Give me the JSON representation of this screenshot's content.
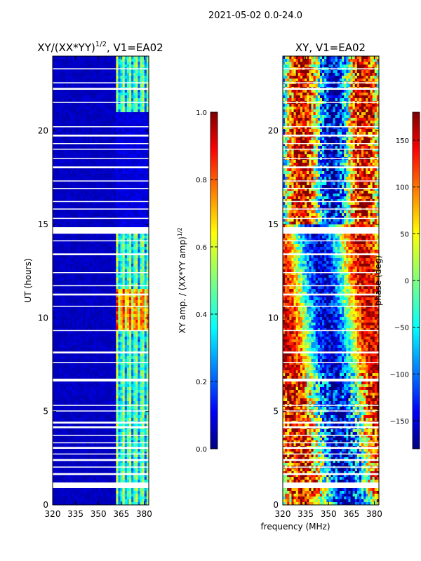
{
  "figure_title": "2021-05-02 0.0-24.0",
  "xlabel": "frequency (MHz)",
  "colors": {
    "cmap_low": "#00007f",
    "cmap_high": "#7f0000",
    "gap": "#ffffff",
    "axis": "#000000"
  },
  "chart_data": [
    {
      "type": "heatmap",
      "title_main": "XY/(XX*YY)",
      "title_exp": "1/2",
      "title_suffix": ", V1=EA02",
      "ylabel": "UT (hours)",
      "xlim": [
        320,
        383
      ],
      "ylim": [
        0,
        24
      ],
      "xticks": [
        320,
        335,
        350,
        365,
        380
      ],
      "yticks": [
        0,
        5,
        10,
        15,
        20
      ],
      "colorbar": {
        "label_main": "XY amp. / (XX*YY amp)",
        "label_exp": "1/2",
        "range": [
          0.0,
          1.0
        ],
        "ticks": [
          0.0,
          0.2,
          0.4,
          0.6,
          0.8,
          1.0
        ],
        "tick_labels": [
          "0.0",
          "0.2",
          "0.4",
          "0.6",
          "0.8",
          "1.0"
        ]
      },
      "pattern": "low-amplitude background; elevated amplitude 361-382 MHz, strongest ~9.5-11.5 UT"
    },
    {
      "type": "heatmap",
      "title_main": "XY, V1=EA02",
      "ylabel": "",
      "xlim": [
        320,
        383
      ],
      "ylim": [
        0,
        24
      ],
      "xticks": [
        320,
        335,
        350,
        365,
        380
      ],
      "yticks": [
        0,
        5,
        10,
        15,
        20
      ],
      "colorbar": {
        "label_main": "phase (deg)",
        "range": [
          -180,
          180
        ],
        "ticks": [
          -150,
          -100,
          -50,
          0,
          50,
          100,
          150
        ],
        "tick_labels": [
          "−150",
          "−100",
          "−50",
          "0",
          "50",
          "100",
          "150"
        ]
      },
      "pattern": "phase stripes across frequency, noisy in 15-24 UT and 0-7 UT"
    }
  ],
  "gap_bands_ut": [
    [
      0.9,
      1.2
    ],
    [
      1.6,
      1.7
    ],
    [
      2.0,
      2.05
    ],
    [
      2.35,
      2.45
    ],
    [
      2.7,
      2.75
    ],
    [
      3.0,
      3.1
    ],
    [
      3.3,
      3.35
    ],
    [
      3.7,
      3.75
    ],
    [
      4.1,
      4.2
    ],
    [
      4.35,
      4.45
    ],
    [
      5.0,
      5.05
    ],
    [
      5.3,
      5.35
    ],
    [
      6.6,
      6.75
    ],
    [
      7.6,
      7.65
    ],
    [
      8.1,
      8.2
    ],
    [
      9.3,
      9.35
    ],
    [
      10.6,
      10.65
    ],
    [
      11.2,
      11.3
    ],
    [
      11.7,
      11.75
    ],
    [
      12.4,
      12.45
    ],
    [
      13.35,
      13.45
    ],
    [
      14.1,
      14.15
    ],
    [
      14.5,
      14.85
    ],
    [
      15.3,
      15.35
    ],
    [
      15.8,
      15.85
    ],
    [
      16.2,
      16.25
    ],
    [
      16.9,
      16.95
    ],
    [
      17.3,
      17.35
    ],
    [
      18.0,
      18.1
    ],
    [
      18.5,
      18.55
    ],
    [
      19.0,
      19.05
    ],
    [
      19.3,
      19.35
    ],
    [
      19.7,
      19.8
    ],
    [
      20.2,
      20.25
    ],
    [
      21.5,
      21.55
    ],
    [
      22.2,
      22.3
    ],
    [
      22.55,
      22.6
    ],
    [
      23.3,
      23.35
    ]
  ]
}
